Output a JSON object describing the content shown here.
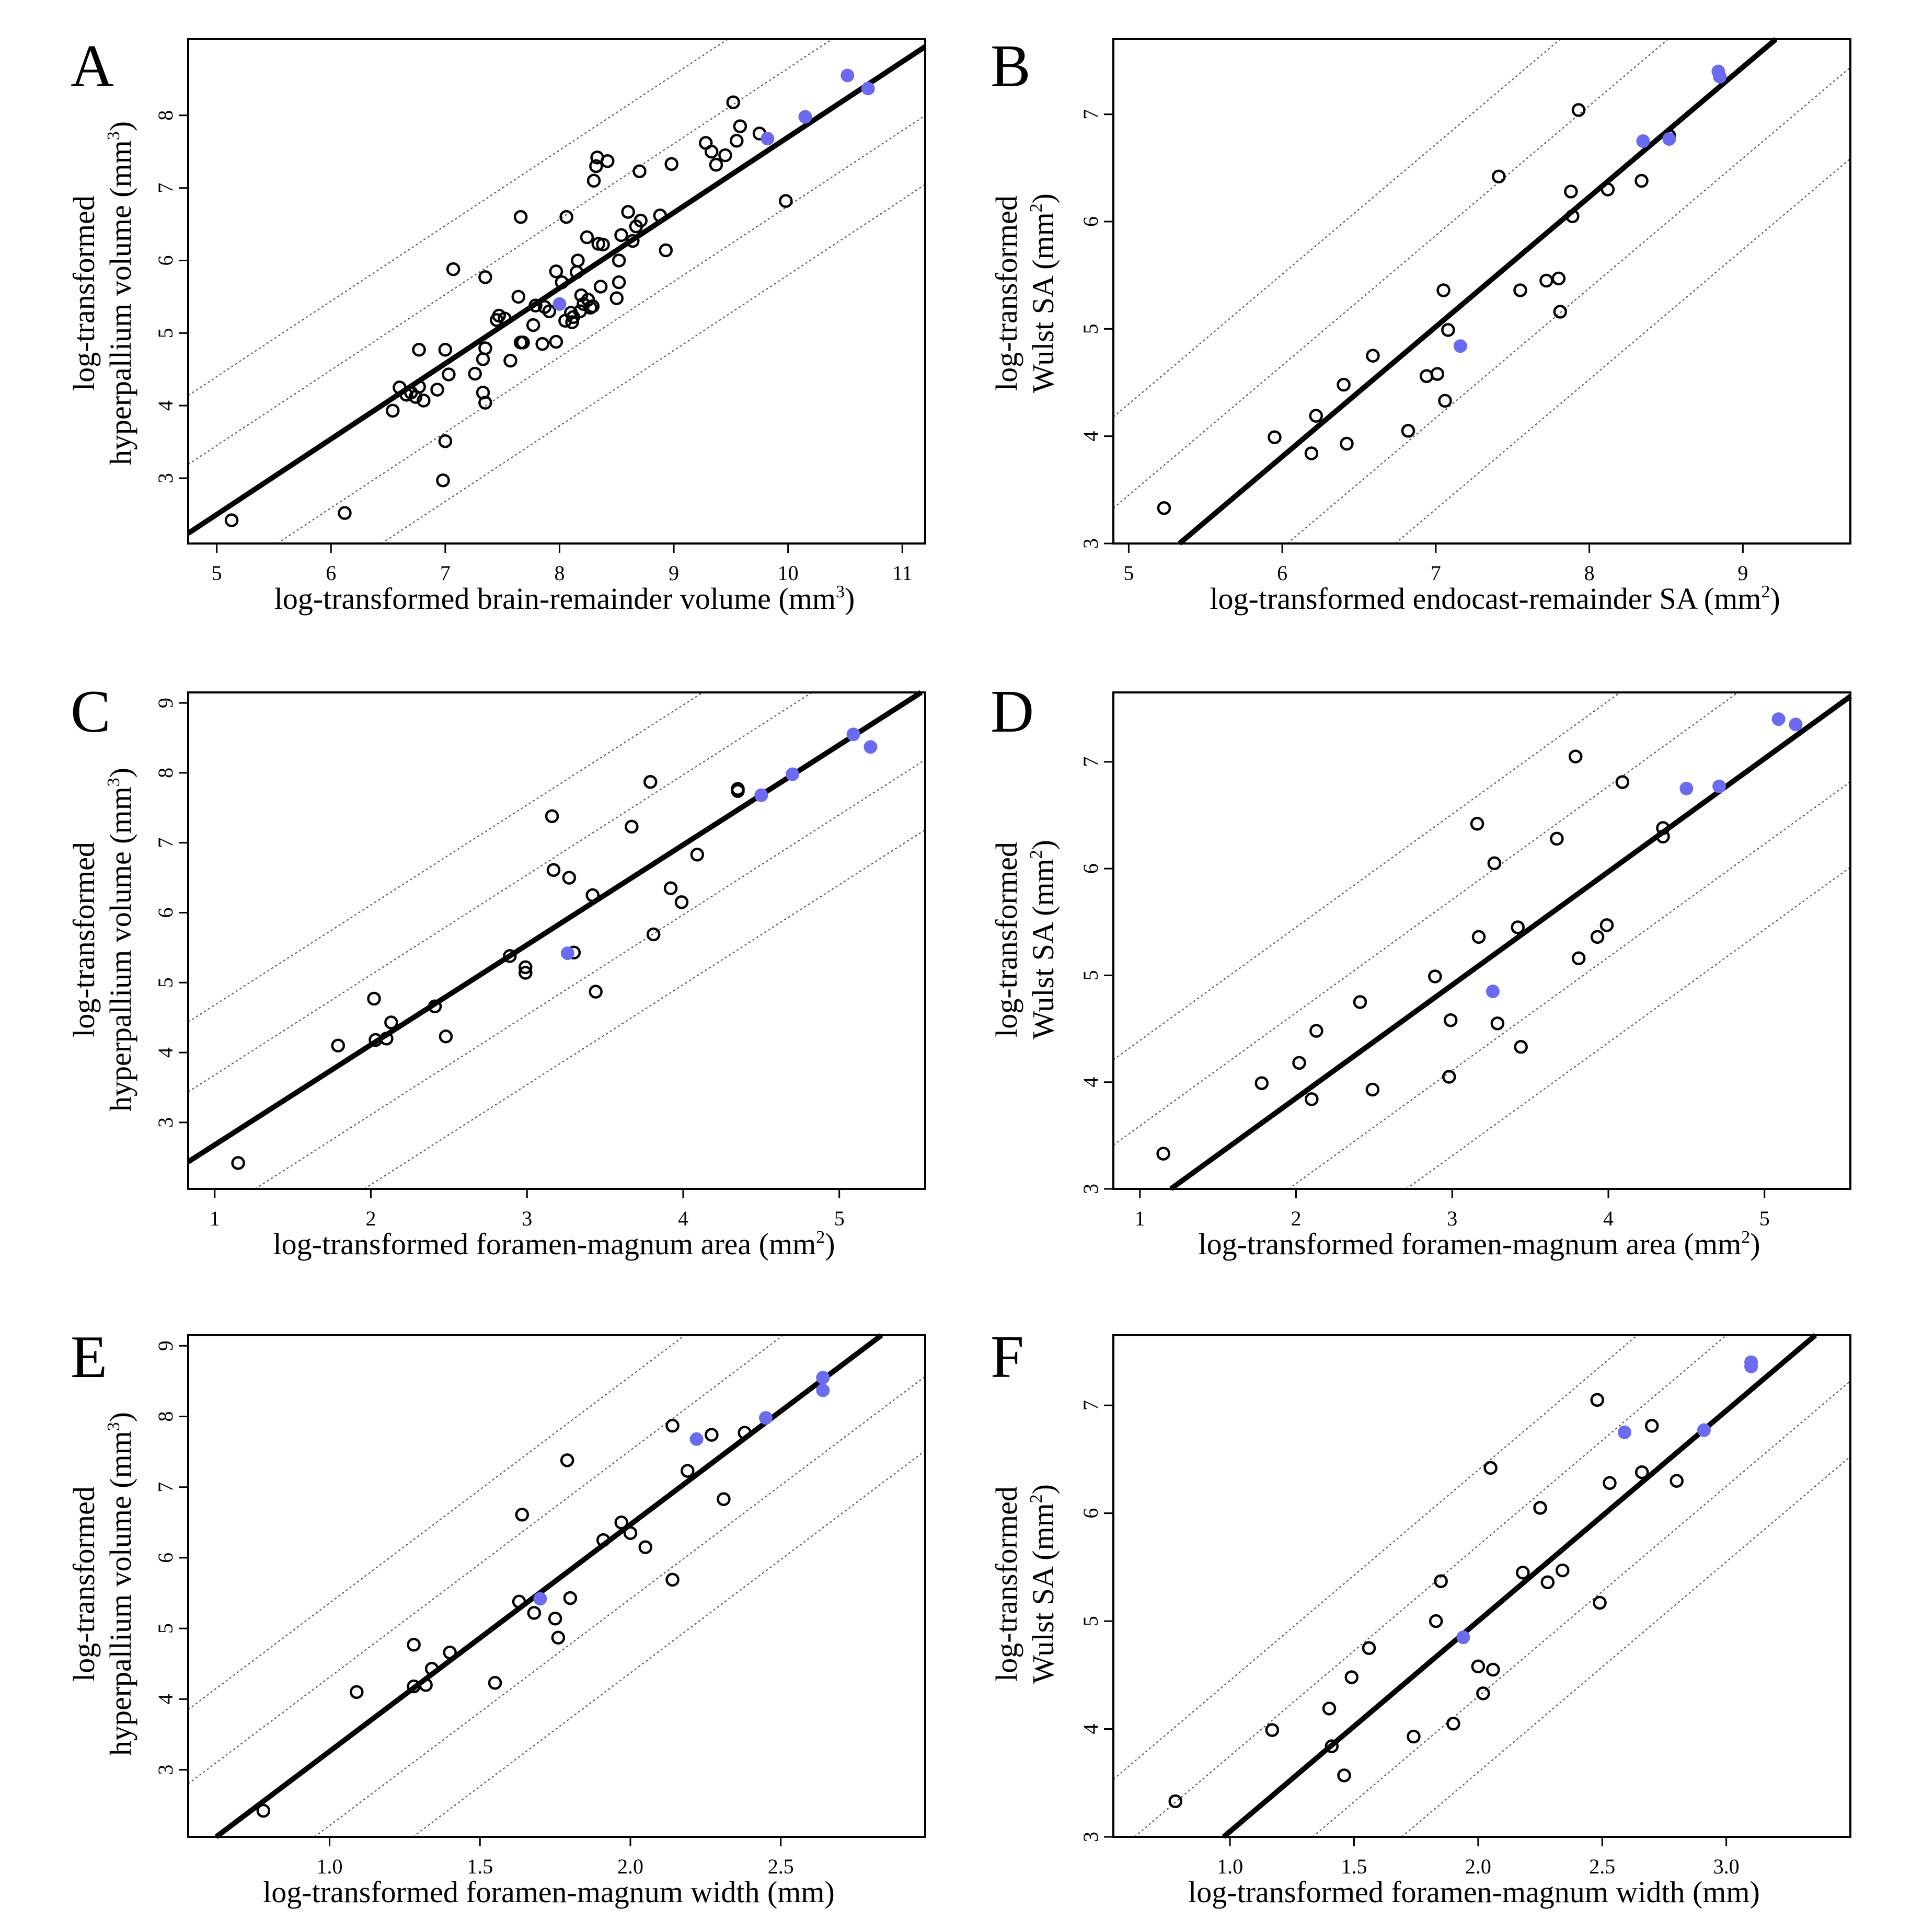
{
  "colors": {
    "open_point": "#000000",
    "highlight_point": "#6b6bf0",
    "fit_line": "#000000",
    "band_line": "#555555"
  },
  "chart_data": [
    {
      "panel": "A",
      "type": "scatter",
      "xlabel": "log-transformed brain-remainder volume (mm",
      "xlabel_sup": "3",
      "xlabel_end": ")",
      "ylabel_line1": "log-transformed",
      "ylabel_line2": "hyperpallium volume (mm",
      "ylabel_sup": "3",
      "ylabel_end": ")",
      "xlim": [
        4.75,
        11.2
      ],
      "ylim": [
        2.1,
        9.05
      ],
      "xticks": [
        "5",
        "6",
        "7",
        "8",
        "9",
        "10",
        "11"
      ],
      "xtick_values": [
        5,
        6,
        7,
        8,
        9,
        10,
        11
      ],
      "yticks": [
        "3",
        "4",
        "5",
        "6",
        "7",
        "8"
      ],
      "ytick_values": [
        3,
        4,
        5,
        6,
        7,
        8
      ],
      "fit": {
        "slope": 1.04,
        "intercept": -2.7
      },
      "band_offsets": [
        -1.9,
        -0.95,
        0.95,
        1.9
      ],
      "highlight": [
        [
          8.0,
          5.4
        ],
        [
          9.82,
          7.68
        ],
        [
          10.15,
          7.98
        ],
        [
          10.52,
          8.55
        ],
        [
          10.7,
          8.37
        ]
      ],
      "points": [
        [
          5.13,
          2.42
        ],
        [
          6.12,
          2.52
        ],
        [
          6.54,
          3.93
        ],
        [
          6.6,
          4.25
        ],
        [
          6.66,
          4.15
        ],
        [
          6.7,
          4.18
        ],
        [
          6.74,
          4.12
        ],
        [
          6.77,
          4.26
        ],
        [
          6.77,
          4.77
        ],
        [
          6.81,
          4.07
        ],
        [
          6.93,
          4.22
        ],
        [
          6.98,
          2.97
        ],
        [
          7.0,
          3.51
        ],
        [
          7.0,
          4.77
        ],
        [
          7.03,
          4.43
        ],
        [
          7.07,
          5.88
        ],
        [
          7.26,
          4.44
        ],
        [
          7.33,
          4.18
        ],
        [
          7.33,
          4.64
        ],
        [
          7.35,
          4.04
        ],
        [
          7.35,
          5.77
        ],
        [
          7.35,
          4.79
        ],
        [
          7.45,
          5.18
        ],
        [
          7.47,
          5.24
        ],
        [
          7.52,
          5.2
        ],
        [
          7.57,
          4.62
        ],
        [
          7.64,
          5.5
        ],
        [
          7.66,
          4.87
        ],
        [
          7.68,
          4.87
        ],
        [
          7.66,
          6.6
        ],
        [
          7.77,
          5.11
        ],
        [
          7.79,
          5.38
        ],
        [
          7.85,
          4.85
        ],
        [
          7.87,
          5.36
        ],
        [
          7.91,
          5.3
        ],
        [
          7.97,
          4.88
        ],
        [
          7.97,
          5.85
        ],
        [
          8.02,
          5.7
        ],
        [
          8.05,
          5.17
        ],
        [
          8.06,
          6.6
        ],
        [
          8.1,
          5.28
        ],
        [
          8.11,
          5.15
        ],
        [
          8.12,
          5.22
        ],
        [
          8.15,
          5.84
        ],
        [
          8.16,
          6.0
        ],
        [
          8.18,
          5.3
        ],
        [
          8.19,
          5.52
        ],
        [
          8.21,
          5.4
        ],
        [
          8.24,
          6.32
        ],
        [
          8.25,
          5.46
        ],
        [
          8.27,
          5.35
        ],
        [
          8.29,
          5.37
        ],
        [
          8.3,
          7.1
        ],
        [
          8.32,
          7.3
        ],
        [
          8.33,
          7.42
        ],
        [
          8.34,
          6.23
        ],
        [
          8.36,
          5.64
        ],
        [
          8.38,
          6.22
        ],
        [
          8.42,
          7.37
        ],
        [
          8.5,
          5.48
        ],
        [
          8.52,
          5.7
        ],
        [
          8.52,
          6.0
        ],
        [
          8.54,
          6.35
        ],
        [
          8.6,
          6.67
        ],
        [
          8.64,
          6.27
        ],
        [
          8.67,
          6.47
        ],
        [
          8.71,
          6.55
        ],
        [
          8.7,
          7.23
        ],
        [
          8.88,
          6.62
        ],
        [
          8.93,
          6.14
        ],
        [
          8.98,
          7.33
        ],
        [
          9.28,
          7.62
        ],
        [
          9.33,
          7.5
        ],
        [
          9.37,
          7.32
        ],
        [
          9.45,
          7.45
        ],
        [
          9.52,
          8.18
        ],
        [
          9.55,
          7.65
        ],
        [
          9.58,
          7.85
        ],
        [
          9.75,
          7.75
        ],
        [
          9.98,
          6.82
        ]
      ]
    },
    {
      "panel": "B",
      "type": "scatter",
      "xlabel": "log-transformed endocast-remainder SA (mm",
      "xlabel_sup": "2",
      "xlabel_end": ")",
      "ylabel_line1": "log-transformed",
      "ylabel_line2": "Wulst SA (mm",
      "ylabel_sup": "2",
      "ylabel_end": ")",
      "xlim": [
        4.9,
        9.7
      ],
      "ylim": [
        3.0,
        7.7
      ],
      "xticks": [
        "5",
        "6",
        "7",
        "8",
        "9"
      ],
      "xtick_values": [
        5,
        6,
        7,
        8,
        9
      ],
      "yticks": [
        "3",
        "4",
        "5",
        "6",
        "7"
      ],
      "ytick_values": [
        3,
        4,
        5,
        6,
        7
      ],
      "fit": {
        "slope": 1.21,
        "intercept": -3.45
      },
      "band_offsets": [
        -1.7,
        -0.85,
        0.85,
        1.7
      ],
      "highlight": [
        [
          7.16,
          4.84
        ],
        [
          8.35,
          6.75
        ],
        [
          8.52,
          6.77
        ],
        [
          8.84,
          7.4
        ],
        [
          8.85,
          7.35
        ]
      ],
      "points": [
        [
          5.23,
          3.33
        ],
        [
          5.95,
          3.99
        ],
        [
          6.19,
          3.84
        ],
        [
          6.22,
          4.19
        ],
        [
          6.4,
          4.48
        ],
        [
          6.42,
          3.93
        ],
        [
          6.59,
          4.75
        ],
        [
          6.82,
          4.05
        ],
        [
          6.94,
          4.56
        ],
        [
          7.01,
          4.58
        ],
        [
          7.05,
          5.36
        ],
        [
          7.06,
          4.33
        ],
        [
          7.08,
          4.99
        ],
        [
          7.41,
          6.42
        ],
        [
          7.55,
          5.36
        ],
        [
          7.72,
          5.45
        ],
        [
          7.8,
          5.47
        ],
        [
          7.81,
          5.16
        ],
        [
          7.88,
          6.28
        ],
        [
          7.89,
          6.05
        ],
        [
          7.93,
          7.04
        ],
        [
          8.12,
          6.3
        ],
        [
          8.34,
          6.38
        ],
        [
          8.52,
          6.8
        ]
      ]
    },
    {
      "panel": "C",
      "type": "scatter",
      "xlabel": "log-transformed foramen-magnum area (mm",
      "xlabel_sup": "2",
      "xlabel_end": ")",
      "ylabel_line1": "log-transformed",
      "ylabel_line2": "hyperpallium volume (mm",
      "ylabel_sup": "3",
      "ylabel_end": ")",
      "xlim": [
        0.83,
        5.55
      ],
      "ylim": [
        2.05,
        9.15
      ],
      "xticks": [
        "1",
        "2",
        "3",
        "4",
        "5"
      ],
      "xtick_values": [
        1,
        2,
        3,
        4,
        5
      ],
      "yticks": [
        "3",
        "4",
        "5",
        "6",
        "7",
        "8",
        "9"
      ],
      "ytick_values": [
        3,
        4,
        5,
        6,
        7,
        8,
        9
      ],
      "fit": {
        "slope": 1.43,
        "intercept": 1.25
      },
      "band_offsets": [
        -2.0,
        -1.0,
        1.0,
        2.0
      ],
      "highlight": [
        [
          3.26,
          5.42
        ],
        [
          4.5,
          7.68
        ],
        [
          4.7,
          7.98
        ],
        [
          5.09,
          8.55
        ],
        [
          5.2,
          8.37
        ]
      ],
      "points": [
        [
          1.15,
          2.42
        ],
        [
          1.79,
          4.1
        ],
        [
          2.02,
          4.77
        ],
        [
          2.03,
          4.18
        ],
        [
          2.1,
          4.2
        ],
        [
          2.13,
          4.43
        ],
        [
          2.41,
          4.66
        ],
        [
          2.48,
          4.23
        ],
        [
          2.89,
          5.38
        ],
        [
          2.99,
          5.22
        ],
        [
          2.99,
          5.14
        ],
        [
          3.16,
          7.38
        ],
        [
          3.17,
          6.61
        ],
        [
          3.27,
          6.5
        ],
        [
          3.3,
          5.43
        ],
        [
          3.42,
          6.25
        ],
        [
          3.44,
          4.87
        ],
        [
          3.67,
          7.23
        ],
        [
          3.79,
          7.87
        ],
        [
          3.81,
          5.69
        ],
        [
          3.92,
          6.35
        ],
        [
          3.99,
          6.15
        ],
        [
          4.09,
          6.83
        ],
        [
          4.35,
          7.77
        ],
        [
          4.35,
          7.74
        ]
      ]
    },
    {
      "panel": "D",
      "type": "scatter",
      "xlabel": "log-transformed foramen-magnum area (mm",
      "xlabel_sup": "2",
      "xlabel_end": ")",
      "ylabel_line1": "log-transformed",
      "ylabel_line2": "Wulst SA (mm",
      "ylabel_sup": "2",
      "ylabel_end": ")",
      "xlim": [
        0.83,
        5.55
      ],
      "ylim": [
        3.0,
        7.65
      ],
      "xticks": [
        "1",
        "2",
        "3",
        "4",
        "5"
      ],
      "xtick_values": [
        1,
        2,
        3,
        4,
        5
      ],
      "yticks": [
        "3",
        "4",
        "5",
        "6",
        "7"
      ],
      "ytick_values": [
        3,
        4,
        5,
        6,
        7
      ],
      "fit": {
        "slope": 1.06,
        "intercept": 1.73
      },
      "band_offsets": [
        -1.6,
        -0.8,
        0.8,
        1.6
      ],
      "highlight": [
        [
          3.26,
          4.85
        ],
        [
          4.5,
          6.75
        ],
        [
          4.71,
          6.77
        ],
        [
          5.09,
          7.4
        ],
        [
          5.2,
          7.35
        ]
      ],
      "points": [
        [
          1.15,
          3.33
        ],
        [
          1.78,
          3.99
        ],
        [
          2.02,
          4.18
        ],
        [
          2.1,
          3.84
        ],
        [
          2.13,
          4.48
        ],
        [
          2.41,
          4.75
        ],
        [
          2.49,
          3.93
        ],
        [
          2.89,
          4.99
        ],
        [
          2.98,
          4.05
        ],
        [
          2.99,
          4.58
        ],
        [
          3.16,
          6.42
        ],
        [
          3.17,
          5.36
        ],
        [
          3.27,
          6.05
        ],
        [
          3.29,
          4.55
        ],
        [
          3.42,
          5.45
        ],
        [
          3.44,
          4.33
        ],
        [
          3.67,
          6.28
        ],
        [
          3.79,
          7.05
        ],
        [
          3.81,
          5.16
        ],
        [
          3.93,
          5.36
        ],
        [
          3.99,
          5.47
        ],
        [
          4.09,
          6.81
        ],
        [
          4.35,
          6.38
        ],
        [
          4.35,
          6.3
        ]
      ]
    },
    {
      "panel": "E",
      "type": "scatter",
      "xlabel": "log-transformed foramen-magnum width (mm)",
      "xlabel_sup": "",
      "xlabel_end": "",
      "ylabel_line1": "log-transformed",
      "ylabel_line2": "hyperpallium volume (mm",
      "ylabel_sup": "3",
      "ylabel_end": ")",
      "xlim": [
        0.53,
        2.98
      ],
      "ylim": [
        2.05,
        9.15
      ],
      "xticks": [
        "1.0",
        "1.5",
        "2.0",
        "2.5"
      ],
      "xtick_values": [
        1.0,
        1.5,
        2.0,
        2.5
      ],
      "yticks": [
        "3",
        "4",
        "5",
        "6",
        "7",
        "8",
        "9"
      ],
      "ytick_values": [
        3,
        4,
        5,
        6,
        7,
        8,
        9
      ],
      "fit": {
        "slope": 3.21,
        "intercept": 0.05
      },
      "band_offsets": [
        -2.1,
        -1.05,
        1.05,
        2.1
      ],
      "highlight": [
        [
          1.7,
          5.42
        ],
        [
          2.22,
          7.68
        ],
        [
          2.45,
          7.98
        ],
        [
          2.64,
          8.55
        ],
        [
          2.64,
          8.37
        ]
      ],
      "points": [
        [
          0.78,
          2.42
        ],
        [
          1.09,
          4.1
        ],
        [
          1.28,
          4.77
        ],
        [
          1.28,
          4.18
        ],
        [
          1.32,
          4.2
        ],
        [
          1.34,
          4.43
        ],
        [
          1.4,
          4.66
        ],
        [
          1.55,
          4.23
        ],
        [
          1.63,
          5.38
        ],
        [
          1.64,
          6.61
        ],
        [
          1.68,
          5.22
        ],
        [
          1.75,
          5.14
        ],
        [
          1.76,
          4.87
        ],
        [
          1.79,
          7.38
        ],
        [
          1.8,
          5.43
        ],
        [
          1.91,
          6.25
        ],
        [
          1.97,
          6.5
        ],
        [
          2.0,
          6.35
        ],
        [
          2.05,
          6.15
        ],
        [
          2.14,
          5.69
        ],
        [
          2.14,
          7.87
        ],
        [
          2.19,
          7.23
        ],
        [
          2.27,
          7.74
        ],
        [
          2.31,
          6.83
        ],
        [
          2.38,
          7.77
        ]
      ]
    },
    {
      "panel": "F",
      "type": "scatter",
      "xlabel": "log-transformed foramen-magnum width (mm)",
      "xlabel_sup": "",
      "xlabel_end": "",
      "ylabel_line1": "log-transformed",
      "ylabel_line2": "Wulst SA (mm",
      "ylabel_sup": "2",
      "ylabel_end": ")",
      "xlim": [
        0.53,
        3.5
      ],
      "ylim": [
        3.0,
        7.65
      ],
      "xticks": [
        "1.0",
        "1.5",
        "2.0",
        "2.5",
        "3.0"
      ],
      "xtick_values": [
        1.0,
        1.5,
        2.0,
        2.5,
        3.0
      ],
      "yticks": [
        "3",
        "4",
        "5",
        "6",
        "7"
      ],
      "ytick_values": [
        3,
        4,
        5,
        6,
        7
      ],
      "fit": {
        "slope": 1.95,
        "intercept": 1.1
      },
      "band_offsets": [
        -1.4,
        -0.7,
        0.7,
        1.4
      ],
      "highlight": [
        [
          1.94,
          4.85
        ],
        [
          2.59,
          6.75
        ],
        [
          2.91,
          6.77
        ],
        [
          3.1,
          7.4
        ],
        [
          3.1,
          7.36
        ]
      ],
      "points": [
        [
          0.78,
          3.33
        ],
        [
          1.17,
          3.99
        ],
        [
          1.4,
          4.19
        ],
        [
          1.41,
          3.84
        ],
        [
          1.46,
          3.57
        ],
        [
          1.49,
          4.48
        ],
        [
          1.56,
          4.75
        ],
        [
          1.74,
          3.93
        ],
        [
          1.83,
          5.0
        ],
        [
          1.85,
          5.37
        ],
        [
          1.9,
          4.05
        ],
        [
          2.0,
          4.58
        ],
        [
          2.02,
          4.33
        ],
        [
          2.05,
          6.42
        ],
        [
          2.06,
          4.55
        ],
        [
          2.18,
          5.45
        ],
        [
          2.25,
          6.05
        ],
        [
          2.28,
          5.36
        ],
        [
          2.34,
          5.47
        ],
        [
          2.48,
          7.05
        ],
        [
          2.49,
          5.17
        ],
        [
          2.53,
          6.28
        ],
        [
          2.66,
          6.38
        ],
        [
          2.7,
          6.81
        ],
        [
          2.8,
          6.3
        ]
      ]
    }
  ]
}
